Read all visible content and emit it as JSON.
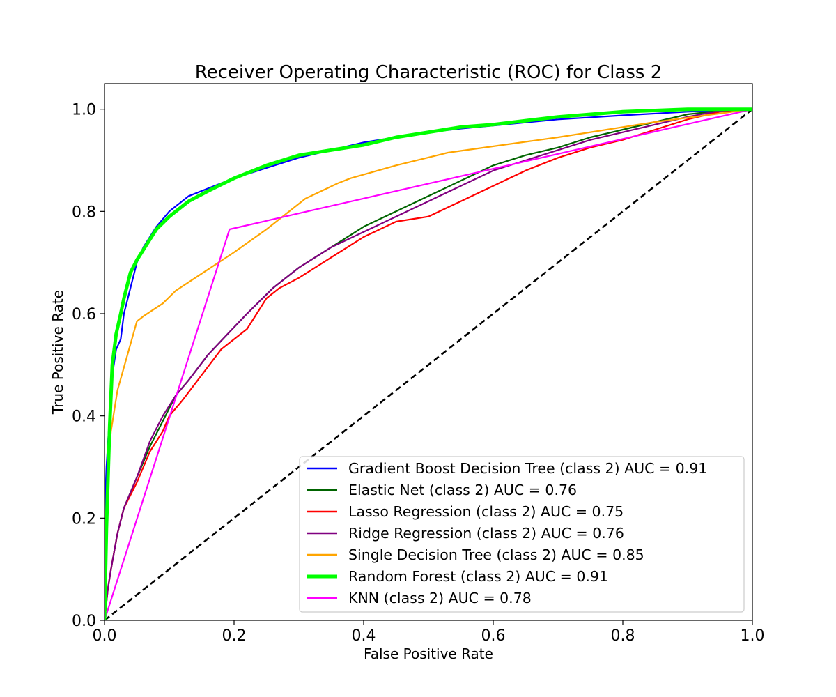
{
  "chart_data": {
    "type": "line",
    "title": "Receiver Operating Characteristic (ROC) for Class 2",
    "xlabel": "False Positive Rate",
    "ylabel": "True Positive Rate",
    "xlim": [
      0.0,
      1.0
    ],
    "ylim": [
      0.0,
      1.05
    ],
    "xticks": [
      "0.0",
      "0.2",
      "0.4",
      "0.6",
      "0.8",
      "1.0"
    ],
    "yticks": [
      "0.0",
      "0.2",
      "0.4",
      "0.6",
      "0.8",
      "1.0"
    ],
    "grid": false,
    "legend_position": "lower-right",
    "series": [
      {
        "name": "Gradient Boost Decision Tree (class 2) AUC = 0.91",
        "color": "#0000ff",
        "x": [
          0,
          0.003,
          0.008,
          0.012,
          0.018,
          0.025,
          0.03,
          0.04,
          0.05,
          0.06,
          0.08,
          0.1,
          0.13,
          0.16,
          0.2,
          0.25,
          0.3,
          0.35,
          0.4,
          0.45,
          0.5,
          0.55,
          0.6,
          0.7,
          0.8,
          0.9,
          1.0
        ],
        "y": [
          0.2,
          0.3,
          0.4,
          0.48,
          0.53,
          0.55,
          0.6,
          0.65,
          0.7,
          0.73,
          0.77,
          0.8,
          0.83,
          0.845,
          0.865,
          0.885,
          0.905,
          0.92,
          0.935,
          0.945,
          0.955,
          0.962,
          0.968,
          0.98,
          0.988,
          0.995,
          1.0
        ]
      },
      {
        "name": "Elastic Net (class 2) AUC = 0.76",
        "color": "#006400",
        "x": [
          0,
          0.005,
          0.01,
          0.02,
          0.03,
          0.05,
          0.07,
          0.09,
          0.11,
          0.13,
          0.16,
          0.19,
          0.22,
          0.26,
          0.3,
          0.35,
          0.4,
          0.45,
          0.5,
          0.55,
          0.6,
          0.65,
          0.7,
          0.75,
          0.8,
          0.85,
          0.9,
          0.95,
          1.0
        ],
        "y": [
          0,
          0.06,
          0.1,
          0.17,
          0.22,
          0.28,
          0.34,
          0.39,
          0.44,
          0.47,
          0.52,
          0.56,
          0.6,
          0.65,
          0.69,
          0.73,
          0.77,
          0.8,
          0.83,
          0.86,
          0.89,
          0.91,
          0.925,
          0.945,
          0.96,
          0.975,
          0.99,
          0.997,
          1.0
        ]
      },
      {
        "name": "Lasso Regression (class 2) AUC = 0.75",
        "color": "#ff0000",
        "x": [
          0,
          0.005,
          0.01,
          0.02,
          0.03,
          0.05,
          0.07,
          0.09,
          0.1,
          0.12,
          0.15,
          0.18,
          0.22,
          0.25,
          0.27,
          0.3,
          0.35,
          0.4,
          0.45,
          0.5,
          0.55,
          0.6,
          0.65,
          0.7,
          0.75,
          0.8,
          0.85,
          0.9,
          0.95,
          1.0
        ],
        "y": [
          0,
          0.06,
          0.1,
          0.17,
          0.22,
          0.27,
          0.33,
          0.37,
          0.4,
          0.43,
          0.48,
          0.53,
          0.57,
          0.63,
          0.65,
          0.67,
          0.71,
          0.75,
          0.78,
          0.79,
          0.82,
          0.85,
          0.88,
          0.905,
          0.925,
          0.94,
          0.96,
          0.98,
          0.995,
          1.0
        ]
      },
      {
        "name": "Ridge Regression (class 2) AUC = 0.76",
        "color": "#800080",
        "x": [
          0,
          0.005,
          0.01,
          0.02,
          0.03,
          0.05,
          0.07,
          0.09,
          0.11,
          0.13,
          0.16,
          0.19,
          0.22,
          0.26,
          0.3,
          0.35,
          0.4,
          0.45,
          0.5,
          0.55,
          0.6,
          0.65,
          0.7,
          0.75,
          0.8,
          0.85,
          0.9,
          0.95,
          1.0
        ],
        "y": [
          0,
          0.06,
          0.1,
          0.17,
          0.22,
          0.28,
          0.35,
          0.4,
          0.44,
          0.47,
          0.52,
          0.56,
          0.6,
          0.65,
          0.69,
          0.73,
          0.76,
          0.79,
          0.82,
          0.85,
          0.88,
          0.9,
          0.92,
          0.94,
          0.955,
          0.97,
          0.985,
          0.997,
          1.0
        ]
      },
      {
        "name": "Single Decision Tree (class 2) AUC = 0.85",
        "color": "#ffa500",
        "x": [
          0,
          0.005,
          0.01,
          0.02,
          0.05,
          0.06,
          0.09,
          0.11,
          0.14,
          0.2,
          0.25,
          0.31,
          0.36,
          0.38,
          0.45,
          0.53,
          0.7,
          0.85,
          1.0
        ],
        "y": [
          0,
          0.3,
          0.37,
          0.45,
          0.585,
          0.595,
          0.62,
          0.645,
          0.67,
          0.72,
          0.765,
          0.825,
          0.855,
          0.865,
          0.89,
          0.915,
          0.945,
          0.975,
          1.0
        ]
      },
      {
        "name": "Random Forest (class 2) AUC = 0.91",
        "color": "#00ff00",
        "x": [
          0,
          0.003,
          0.008,
          0.012,
          0.018,
          0.025,
          0.03,
          0.04,
          0.05,
          0.06,
          0.08,
          0.1,
          0.13,
          0.16,
          0.2,
          0.25,
          0.3,
          0.35,
          0.4,
          0.45,
          0.5,
          0.55,
          0.6,
          0.7,
          0.8,
          0.9,
          1.0
        ],
        "y": [
          0,
          0.18,
          0.38,
          0.5,
          0.56,
          0.6,
          0.63,
          0.68,
          0.705,
          0.725,
          0.765,
          0.79,
          0.82,
          0.84,
          0.865,
          0.89,
          0.91,
          0.92,
          0.93,
          0.945,
          0.955,
          0.965,
          0.97,
          0.985,
          0.995,
          1.0,
          1.0
        ]
      },
      {
        "name": "KNN (class 2) AUC = 0.78",
        "color": "#ff00ff",
        "x": [
          0,
          0.193,
          1.0
        ],
        "y": [
          0,
          0.765,
          1.0
        ]
      }
    ],
    "reference_line": {
      "x": [
        0,
        1
      ],
      "y": [
        0,
        1
      ],
      "color": "#000000",
      "style": "dashed"
    }
  }
}
